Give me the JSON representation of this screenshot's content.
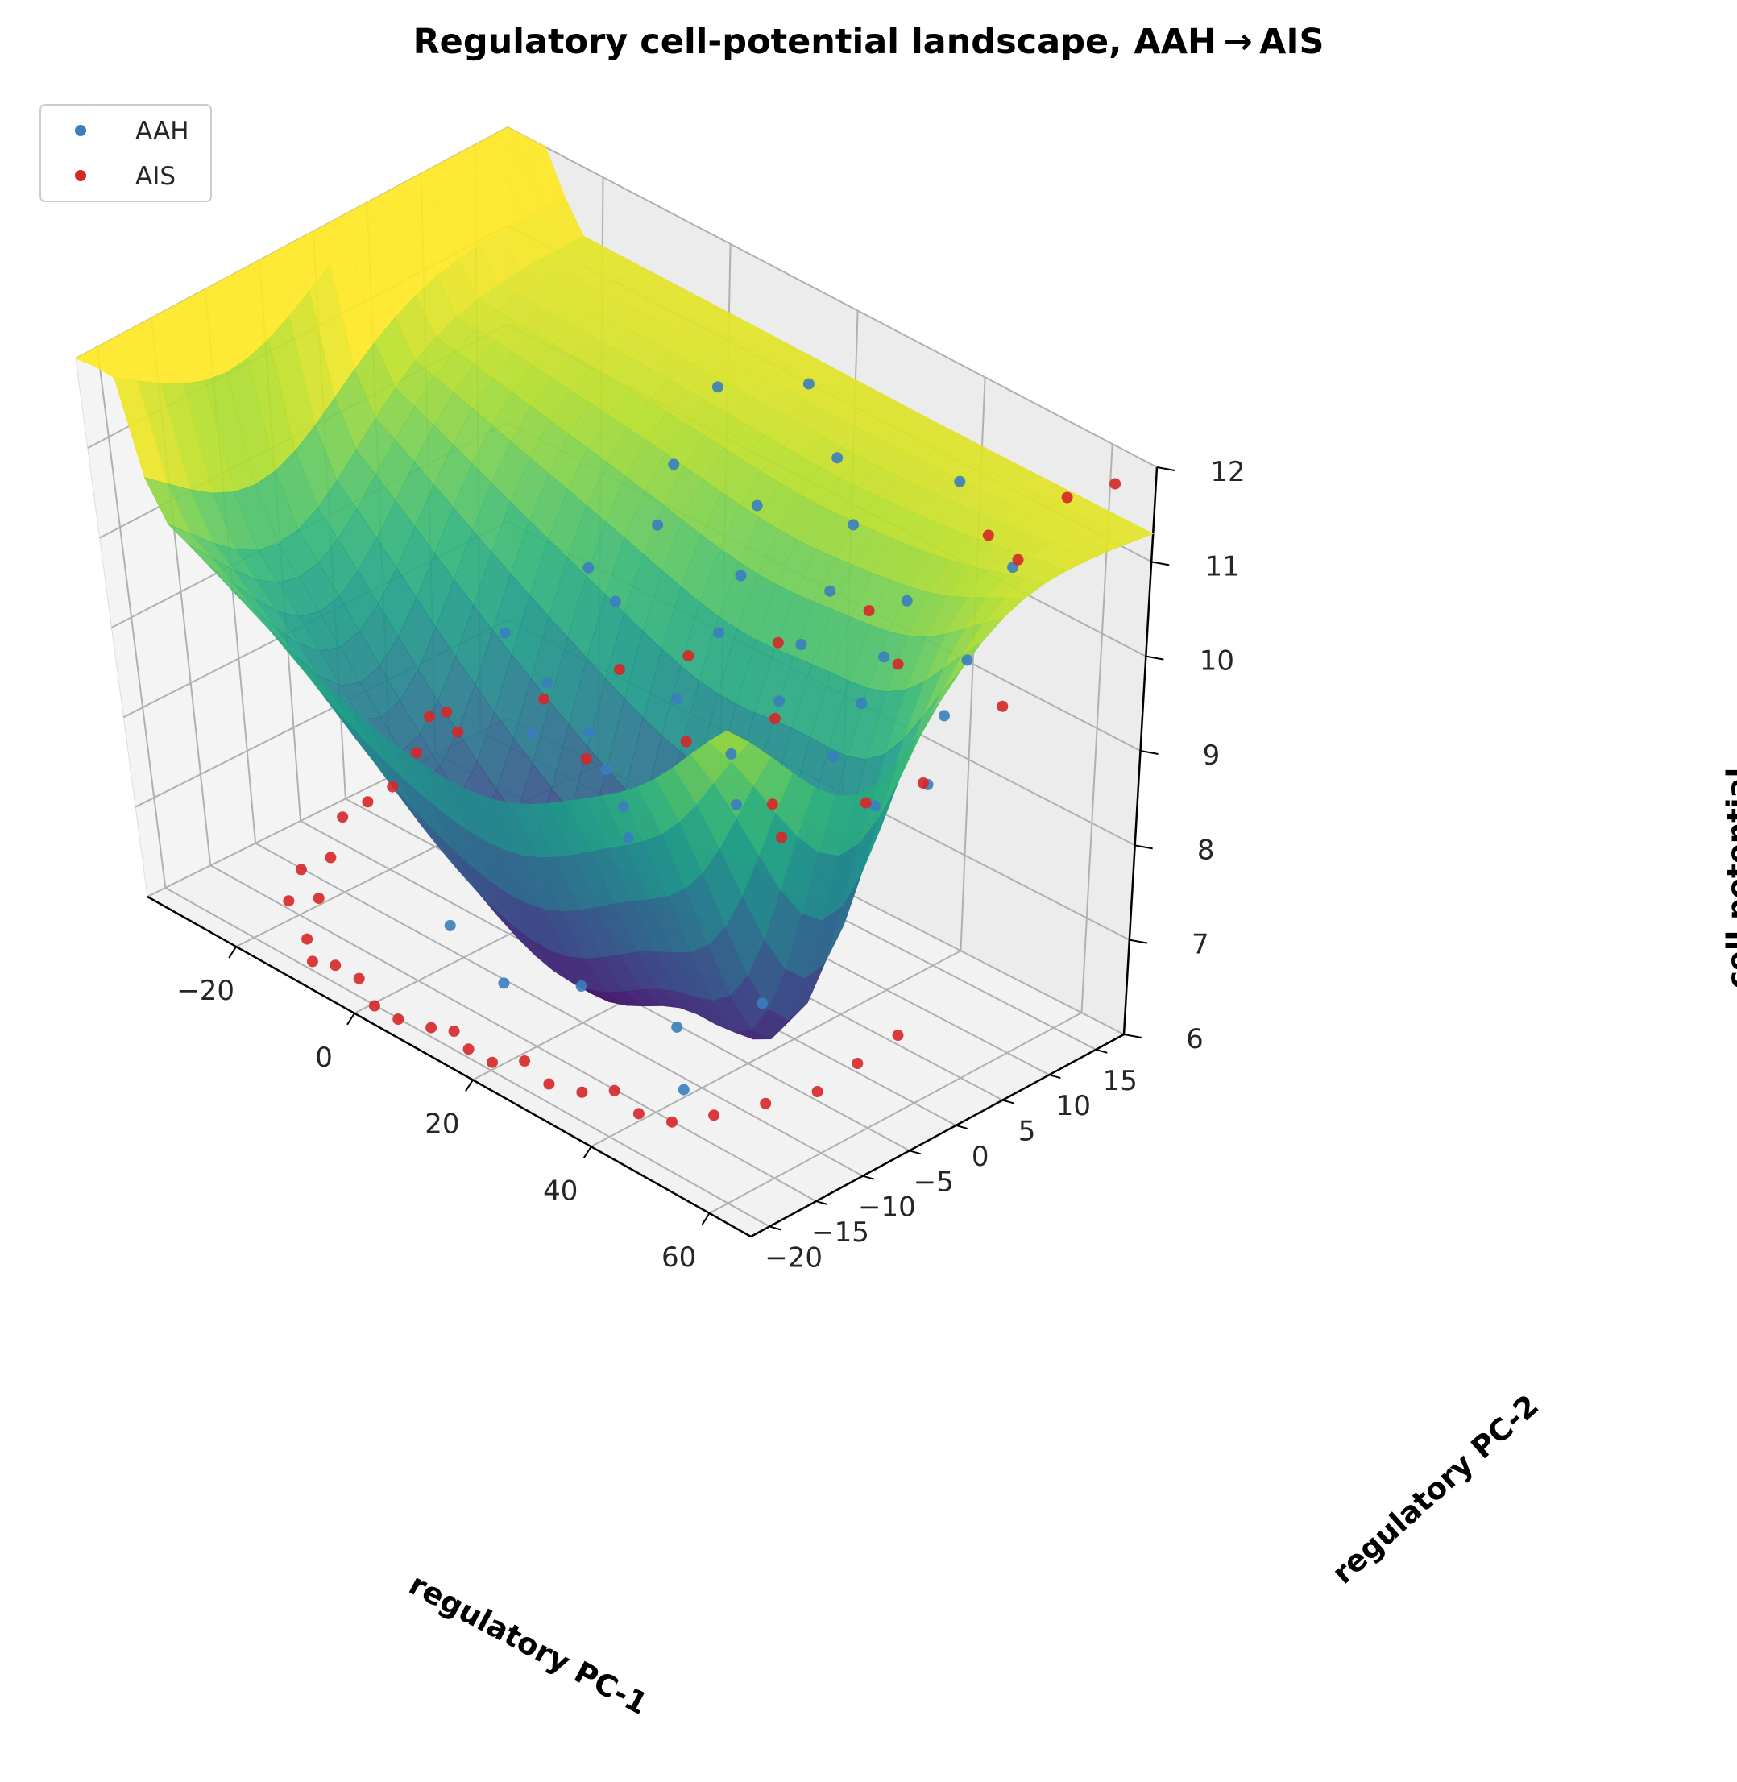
{
  "chart_data": {
    "type": "surface3d+scatter3d",
    "title": "Regulatory cell-potential landscape, AAH → AIS",
    "xlabel": "regulatory PC-1",
    "ylabel": "regulatory PC-2",
    "zlabel": "cell potential",
    "x_ticks": [
      "−20",
      "0",
      "20",
      "40",
      "60"
    ],
    "y_ticks": [
      "−20",
      "−15",
      "−10",
      "−5",
      "0",
      "5",
      "10",
      "15"
    ],
    "z_ticks": [
      "6",
      "7",
      "8",
      "9",
      "10",
      "11",
      "12"
    ],
    "xlim": [
      -35,
      67
    ],
    "ylim": [
      -22,
      18
    ],
    "zlim": [
      6,
      12
    ],
    "grid": true,
    "colormap": "viridis",
    "legend_position": "top-left",
    "series": [
      {
        "name": "AAH",
        "color": "#3a7ebf",
        "points": [
          [
            5,
            14,
            10.9
          ],
          [
            8,
            8,
            10.5
          ],
          [
            12,
            4,
            10.2
          ],
          [
            15,
            -2,
            9.8
          ],
          [
            18,
            10,
            10.3
          ],
          [
            22,
            6,
            9.9
          ],
          [
            25,
            2,
            9.6
          ],
          [
            28,
            -4,
            9.3
          ],
          [
            30,
            12,
            10.4
          ],
          [
            33,
            8,
            10.0
          ],
          [
            35,
            4,
            9.7
          ],
          [
            38,
            0,
            9.4
          ],
          [
            40,
            -6,
            9.2
          ],
          [
            42,
            10,
            10.1
          ],
          [
            45,
            6,
            9.8
          ],
          [
            48,
            2,
            9.6
          ],
          [
            50,
            -2,
            9.3
          ],
          [
            52,
            14,
            10.6
          ],
          [
            55,
            8,
            10.0
          ],
          [
            58,
            4,
            9.7
          ],
          [
            20,
            -8,
            8.9
          ],
          [
            26,
            -10,
            8.8
          ],
          [
            32,
            -12,
            8.7
          ],
          [
            36,
            -14,
            8.6
          ],
          [
            44,
            -8,
            8.9
          ],
          [
            10,
            -6,
            9.0
          ],
          [
            14,
            -10,
            8.8
          ],
          [
            0,
            -4,
            9.1
          ],
          [
            4,
            2,
            9.6
          ],
          [
            60,
            -4,
            9.2
          ],
          [
            62,
            0,
            9.3
          ],
          [
            24,
            14,
            10.8
          ],
          [
            16,
            16,
            11.2
          ],
          [
            40,
            16,
            11.0
          ],
          [
            30,
            -16,
            7.0
          ],
          [
            20,
            -18,
            6.8
          ],
          [
            46,
            -16,
            7.1
          ],
          [
            54,
            -12,
            7.4
          ],
          [
            8,
            -16,
            6.9
          ],
          [
            50,
            -18,
            6.7
          ]
        ]
      },
      {
        "name": "AIS",
        "color": "#d62728",
        "points": [
          [
            -30,
            2,
            6.2
          ],
          [
            -28,
            -2,
            6.3
          ],
          [
            -26,
            -6,
            6.4
          ],
          [
            -22,
            -10,
            6.3
          ],
          [
            -18,
            -14,
            6.2
          ],
          [
            -14,
            -18,
            6.1
          ],
          [
            -10,
            -20,
            6.1
          ],
          [
            -6,
            -20,
            6.2
          ],
          [
            -2,
            -20,
            6.2
          ],
          [
            2,
            -21,
            6.1
          ],
          [
            6,
            -21,
            6.1
          ],
          [
            10,
            -20,
            6.1
          ],
          [
            14,
            -20,
            6.2
          ],
          [
            18,
            -21,
            6.2
          ],
          [
            22,
            -21,
            6.2
          ],
          [
            26,
            -20,
            6.3
          ],
          [
            30,
            -20,
            6.2
          ],
          [
            34,
            -19,
            6.2
          ],
          [
            38,
            -18,
            6.3
          ],
          [
            42,
            -18,
            6.2
          ],
          [
            46,
            -17,
            6.2
          ],
          [
            50,
            -15,
            6.3
          ],
          [
            54,
            -12,
            6.4
          ],
          [
            58,
            -9,
            6.5
          ],
          [
            60,
            -6,
            6.7
          ],
          [
            62,
            -3,
            6.9
          ],
          [
            -32,
            6,
            6.3
          ],
          [
            -33,
            10,
            6.5
          ],
          [
            -24,
            -12,
            6.2
          ],
          [
            -20,
            -16,
            6.2
          ],
          [
            60,
            14,
            11.6
          ],
          [
            64,
            16,
            11.8
          ],
          [
            56,
            12,
            10.9
          ],
          [
            48,
            14,
            10.8
          ],
          [
            64,
            6,
            9.9
          ],
          [
            44,
            8,
            9.6
          ],
          [
            36,
            10,
            9.8
          ],
          [
            28,
            6,
            9.4
          ],
          [
            20,
            2,
            9.2
          ],
          [
            12,
            0,
            8.9
          ],
          [
            6,
            -4,
            8.6
          ],
          [
            -2,
            -8,
            8.2
          ],
          [
            -10,
            -6,
            8.0
          ],
          [
            40,
            -2,
            8.5
          ],
          [
            52,
            0,
            8.8
          ],
          [
            58,
            2,
            9.1
          ],
          [
            34,
            2,
            9.0
          ],
          [
            26,
            -2,
            8.7
          ],
          [
            16,
            -6,
            8.4
          ],
          [
            48,
            -6,
            8.6
          ]
        ]
      }
    ]
  }
}
